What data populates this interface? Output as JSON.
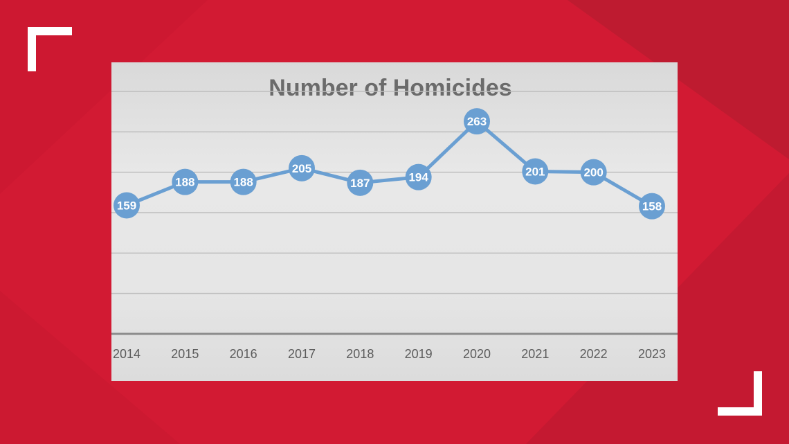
{
  "colors": {
    "background": "#d21a33",
    "series": "#6a9fd2",
    "title": "#6b6b6b",
    "tick": "#5b5b5b"
  },
  "chart_data": {
    "type": "line",
    "title": "Number of Homicides",
    "xlabel": "",
    "ylabel": "",
    "categories": [
      "2014",
      "2015",
      "2016",
      "2017",
      "2018",
      "2019",
      "2020",
      "2021",
      "2022",
      "2023"
    ],
    "series": [
      {
        "values": [
          159,
          188,
          188,
          205,
          187,
          194,
          263,
          201,
          200,
          158
        ]
      }
    ],
    "ylim": [
      0,
      300
    ],
    "grid": true,
    "data_labels": true,
    "legend": "none"
  }
}
